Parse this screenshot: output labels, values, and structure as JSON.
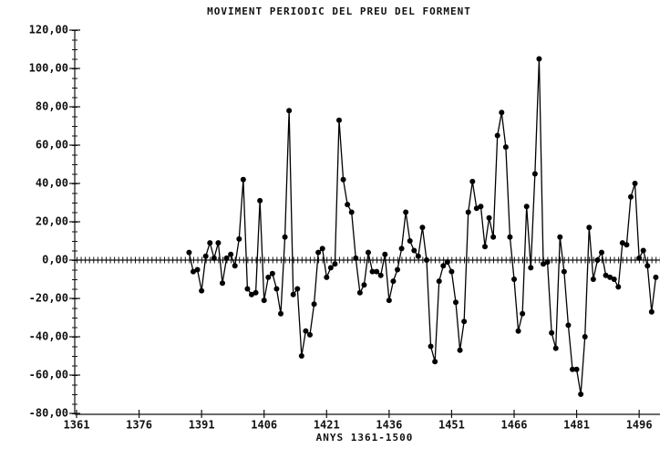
{
  "chart_data": {
    "type": "line",
    "title": "MOVIMENT PERIODIC DEL PREU DEL FORMENT",
    "x_label": "ANYS 1361-1500",
    "color": "#000000",
    "x": [
      1388,
      1389,
      1390,
      1391,
      1392,
      1393,
      1394,
      1395,
      1396,
      1397,
      1398,
      1399,
      1400,
      1401,
      1402,
      1403,
      1404,
      1405,
      1406,
      1407,
      1408,
      1409,
      1410,
      1411,
      1412,
      1413,
      1414,
      1415,
      1416,
      1417,
      1418,
      1419,
      1420,
      1421,
      1422,
      1423,
      1424,
      1425,
      1426,
      1427,
      1428,
      1429,
      1430,
      1431,
      1432,
      1433,
      1434,
      1435,
      1436,
      1437,
      1438,
      1439,
      1440,
      1441,
      1442,
      1443,
      1444,
      1445,
      1446,
      1447,
      1448,
      1449,
      1450,
      1451,
      1452,
      1453,
      1454,
      1455,
      1456,
      1457,
      1458,
      1459,
      1460,
      1461,
      1462,
      1463,
      1464,
      1465,
      1466,
      1467,
      1468,
      1469,
      1470,
      1471,
      1472,
      1473,
      1474,
      1475,
      1476,
      1477,
      1478,
      1479,
      1480,
      1481,
      1482,
      1483,
      1484,
      1485,
      1486,
      1487,
      1488,
      1489,
      1490,
      1491,
      1492,
      1493,
      1494,
      1495,
      1496,
      1497,
      1498,
      1499,
      1500
    ],
    "values": [
      4,
      -6,
      -5,
      -16,
      2,
      9,
      1,
      9,
      -12,
      1,
      3,
      -3,
      11,
      42,
      -15,
      -18,
      -17,
      31,
      -21,
      -9,
      -7,
      -15,
      -28,
      12,
      78,
      -18,
      -15,
      -50,
      -37,
      -39,
      -23,
      4,
      6,
      -9,
      -4,
      -2,
      73,
      42,
      29,
      25,
      1,
      -17,
      -13,
      4,
      -6,
      -6,
      -8,
      3,
      -21,
      -11,
      -5,
      6,
      25,
      10,
      5,
      2,
      17,
      0,
      -45,
      -53,
      -11,
      -3,
      -1,
      -6,
      -22,
      -47,
      -32,
      25,
      41,
      27,
      28,
      7,
      22,
      12,
      65,
      77,
      59,
      12,
      -10,
      -37,
      -28,
      28,
      -4,
      45,
      105,
      -2,
      -1,
      -38,
      -46,
      12,
      -6,
      -34,
      -57,
      -57,
      -70,
      -40,
      17,
      -10,
      0,
      4,
      -8,
      -9,
      -10,
      -14,
      9,
      8,
      33,
      40,
      1,
      5,
      -3,
      -27,
      -9
    ],
    "xlim": [
      1361,
      1501
    ],
    "xticks": [
      1361,
      1376,
      1391,
      1406,
      1421,
      1436,
      1451,
      1466,
      1481,
      1496
    ],
    "ylim": [
      -80,
      120
    ],
    "yticks": [
      {
        "value": -80,
        "label": "-80,00"
      },
      {
        "value": -60,
        "label": "-60,00"
      },
      {
        "value": -40,
        "label": "-40,00"
      },
      {
        "value": -20,
        "label": "-20,00"
      },
      {
        "value": 0,
        "label": "0,00"
      },
      {
        "value": 20,
        "label": "20,00"
      },
      {
        "value": 40,
        "label": "40,00"
      },
      {
        "value": 60,
        "label": "60,00"
      },
      {
        "value": 80,
        "label": "80,00"
      },
      {
        "value": 100,
        "label": "100,00"
      },
      {
        "value": 120,
        "label": "120,00"
      }
    ]
  }
}
